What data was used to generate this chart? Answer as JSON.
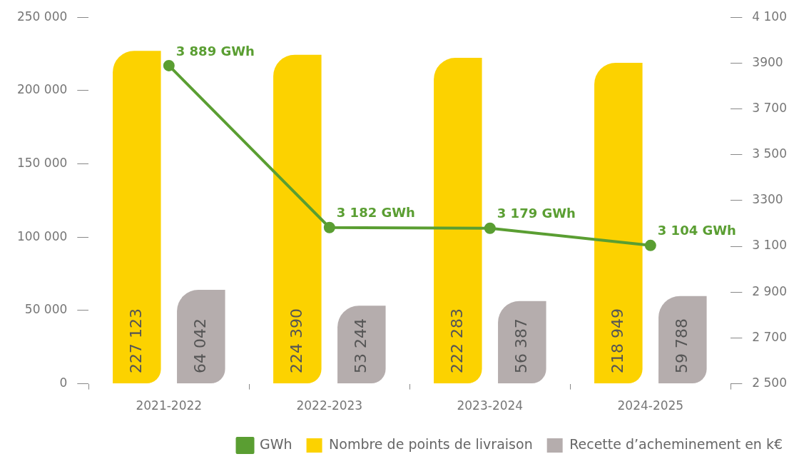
{
  "chart_data": {
    "type": "bar",
    "categories": [
      "2021-2022",
      "2022-2023",
      "2023-2024",
      "2024-2025"
    ],
    "series": [
      {
        "name": "Nombre de points de livraison",
        "color": "#fcd200",
        "values": [
          227123,
          224390,
          222283,
          218949
        ],
        "value_labels": [
          "227 123",
          "224 390",
          "222 283",
          "218 949"
        ]
      },
      {
        "name": "Recette d’acheminement en k€",
        "color": "#b5adad",
        "values": [
          64042,
          53244,
          56387,
          59788
        ],
        "value_labels": [
          "64 042",
          "53 244",
          "56 387",
          "59 788"
        ]
      },
      {
        "name": "GWh",
        "type": "line",
        "axis": "y2",
        "color": "#5a9e32",
        "values": [
          3889,
          3182,
          3179,
          3104
        ],
        "value_labels": [
          "3 889 GWh",
          "3 182 GWh",
          "3 179 GWh",
          "3 104 GWh"
        ]
      }
    ],
    "ylim": [
      0,
      250000
    ],
    "yticks": [
      {
        "value": 0,
        "label": "0"
      },
      {
        "value": 50000,
        "label": "50 000"
      },
      {
        "value": 100000,
        "label": "100 000"
      },
      {
        "value": 150000,
        "label": "150 000"
      },
      {
        "value": 200000,
        "label": "200 000"
      },
      {
        "value": 250000,
        "label": "250 000"
      }
    ],
    "y2lim": [
      2500,
      4100
    ],
    "y2ticks": [
      {
        "value": 2500,
        "label": "2 500"
      },
      {
        "value": 2700,
        "label": "2 700"
      },
      {
        "value": 2900,
        "label": "2 900"
      },
      {
        "value": 3100,
        "label": "3 100"
      },
      {
        "value": 3300,
        "label": "3300"
      },
      {
        "value": 3500,
        "label": "3 500"
      },
      {
        "value": 3700,
        "label": "3 700"
      },
      {
        "value": 3900,
        "label": "3900"
      },
      {
        "value": 4100,
        "label": "4 100"
      }
    ],
    "grid": false,
    "legend": "bottom right",
    "marker": "circle"
  }
}
